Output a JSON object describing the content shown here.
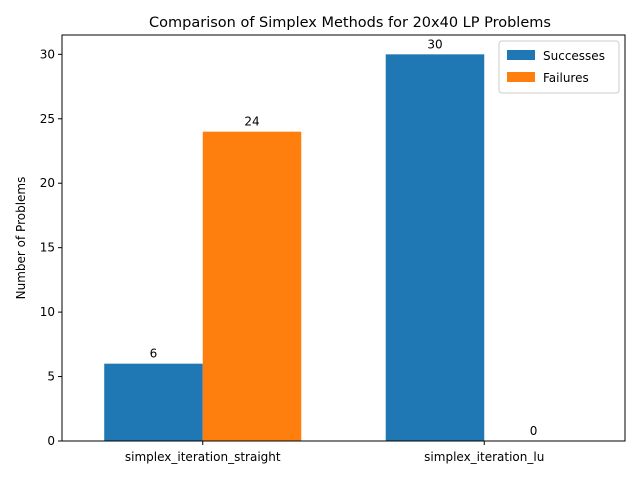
{
  "chart_data": {
    "type": "bar",
    "title": "Comparison of Simplex Methods for 20x40 LP Problems",
    "xlabel": "",
    "ylabel": "Number of Problems",
    "categories": [
      "simplex_iteration_straight",
      "simplex_iteration_lu"
    ],
    "series": [
      {
        "name": "Successes",
        "values": [
          6,
          30
        ],
        "color": "#1f77b4"
      },
      {
        "name": "Failures",
        "values": [
          24,
          0
        ],
        "color": "#ff7f0e"
      }
    ],
    "ylim": [
      0,
      31.5
    ],
    "yticks": [
      0,
      5,
      10,
      15,
      20,
      25,
      30
    ],
    "grid": false,
    "legend": "top-right",
    "data_labels": true
  }
}
